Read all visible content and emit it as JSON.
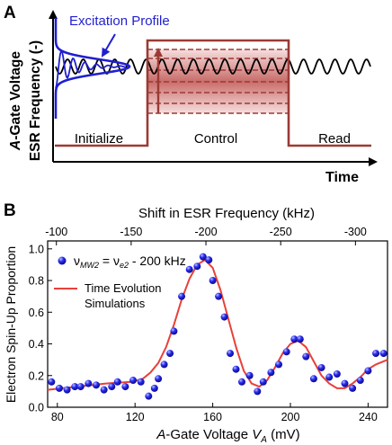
{
  "chart_data": [
    {
      "panel_label": "A",
      "type": "line",
      "ylabel_part1": "A",
      "ylabel_part2": "-Gate Voltage",
      "ylabel_line2": "ESR Frequency (-)",
      "xlabel": "Time",
      "phases": [
        "Initialize",
        "Control",
        "Read"
      ],
      "annotation": "Excitation Profile",
      "colors": {
        "pulse": "#9c3a35",
        "band": "#c0504d",
        "profile": "#1f1fd1",
        "wave": "#000000"
      }
    },
    {
      "panel_label": "B",
      "type": "scatter",
      "xlabel_part1": "A",
      "xlabel_part2": "-Gate Voltage ",
      "xlabel_var": "V",
      "xlabel_sub": "A",
      "xlabel_unit": " (mV)",
      "ylabel": "Electron Spin-Up Proportion",
      "top_xlabel": "Shift in ESR Frequency (kHz)",
      "xlim": [
        75,
        250
      ],
      "ylim": [
        0,
        1.05
      ],
      "x_ticks": [
        "80",
        "120",
        "160",
        "200",
        "240"
      ],
      "x_tick_values": [
        80,
        120,
        160,
        200,
        240
      ],
      "y_ticks": [
        "0.0",
        "0.2",
        "0.4",
        "0.6",
        "0.8",
        "1.0"
      ],
      "y_tick_values": [
        0,
        0.2,
        0.4,
        0.6,
        0.8,
        1.0
      ],
      "top_ticks": [
        "-100",
        "-150",
        "-200",
        "-250",
        "-300"
      ],
      "top_tick_positions": [
        79.5,
        118,
        156.5,
        195,
        233.5
      ],
      "legend_points": {
        "nu": "ν",
        "sub1": "MW2",
        "eq": " = ν",
        "sub2": "e2",
        "rest": " - 200 kHz"
      },
      "legend_line": [
        "Time Evolution",
        "Simulations"
      ],
      "colors": {
        "points": "#1a1aee",
        "fit": "#e8403a"
      },
      "series": [
        {
          "kind": "points",
          "x": [
            77,
            81,
            85,
            89,
            92,
            96,
            100,
            104,
            108,
            111,
            115,
            119,
            123,
            127,
            130,
            132,
            135,
            138,
            140,
            144,
            148,
            152,
            155,
            158,
            160,
            163,
            166,
            169,
            172,
            175,
            179,
            183,
            186,
            190,
            194,
            198,
            202,
            205,
            208,
            212,
            216,
            220,
            224,
            228,
            232,
            236,
            240,
            244,
            248
          ],
          "y": [
            0.16,
            0.12,
            0.11,
            0.13,
            0.13,
            0.15,
            0.14,
            0.11,
            0.13,
            0.16,
            0.13,
            0.17,
            0.16,
            0.07,
            0.12,
            0.18,
            0.27,
            0.34,
            0.48,
            0.7,
            0.87,
            0.89,
            0.95,
            0.93,
            0.8,
            0.7,
            0.57,
            0.34,
            0.24,
            0.16,
            0.2,
            0.1,
            0.16,
            0.22,
            0.27,
            0.35,
            0.43,
            0.43,
            0.32,
            0.18,
            0.25,
            0.19,
            0.21,
            0.15,
            0.12,
            0.17,
            0.23,
            0.34,
            0.34
          ]
        },
        {
          "kind": "line",
          "x": [
            75,
            90,
            105,
            118,
            124,
            128,
            132,
            136,
            140,
            144,
            148,
            152,
            156,
            160,
            164,
            168,
            172,
            176,
            180,
            184,
            188,
            192,
            196,
            200,
            204,
            208,
            212,
            216,
            220,
            224,
            228,
            232,
            236,
            240,
            244,
            250
          ],
          "y": [
            0.11,
            0.13,
            0.15,
            0.16,
            0.18,
            0.22,
            0.28,
            0.38,
            0.52,
            0.68,
            0.81,
            0.9,
            0.93,
            0.88,
            0.74,
            0.56,
            0.38,
            0.23,
            0.15,
            0.13,
            0.17,
            0.25,
            0.34,
            0.4,
            0.42,
            0.38,
            0.29,
            0.2,
            0.15,
            0.12,
            0.12,
            0.15,
            0.19,
            0.24,
            0.27,
            0.3
          ]
        }
      ]
    }
  ]
}
